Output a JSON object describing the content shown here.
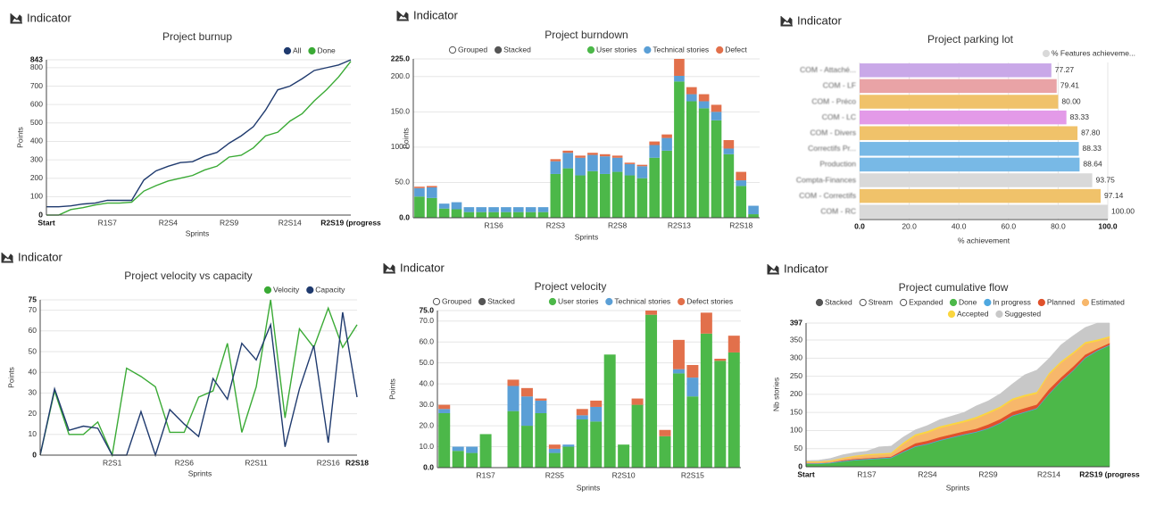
{
  "chart_data": [
    {
      "header": "Indicator",
      "type": "line",
      "title": "Project burnup",
      "x_label": "Sprints",
      "y_label": "Points",
      "categories": [
        "Start",
        null,
        null,
        null,
        null,
        "R1S7",
        null,
        null,
        null,
        null,
        "R2S4",
        null,
        null,
        null,
        null,
        "R2S9",
        null,
        null,
        null,
        null,
        "R2S14",
        null,
        null,
        null,
        null,
        "R2S19 (progress"
      ],
      "series": [
        {
          "name": "All",
          "color": "#1f3a6e",
          "values": [
            45,
            45,
            50,
            60,
            65,
            80,
            80,
            80,
            190,
            240,
            265,
            285,
            290,
            320,
            340,
            390,
            430,
            480,
            570,
            680,
            700,
            740,
            785,
            800,
            815,
            843
          ]
        },
        {
          "name": "Done",
          "color": "#3aaa35",
          "values": [
            0,
            0,
            30,
            40,
            55,
            65,
            65,
            70,
            130,
            160,
            185,
            200,
            215,
            245,
            265,
            315,
            325,
            365,
            430,
            450,
            510,
            550,
            620,
            680,
            750,
            835
          ]
        }
      ],
      "ylim": [
        0,
        843
      ],
      "yticks": [
        0,
        100,
        200,
        300,
        400,
        500,
        600,
        700,
        800,
        843
      ],
      "grid": true,
      "legend": "top-right"
    },
    {
      "header": "Indicator",
      "type": "bar",
      "stacked": true,
      "title": "Project burndown",
      "x_label": "Sprints",
      "y_label": "Points",
      "modes": [
        "Grouped",
        "Stacked"
      ],
      "active_mode": 1,
      "categories": [
        null,
        null,
        null,
        null,
        null,
        null,
        "R1S6",
        null,
        null,
        null,
        null,
        "R2S3",
        null,
        null,
        null,
        null,
        "R2S8",
        null,
        null,
        null,
        null,
        "R2S13",
        null,
        null,
        null,
        null,
        "R2S18",
        null
      ],
      "series": [
        {
          "name": "User stories",
          "color": "#4cb849",
          "values": [
            30,
            28,
            13,
            12,
            8,
            8,
            8,
            8,
            8,
            8,
            8,
            62,
            70,
            60,
            66,
            62,
            65,
            60,
            56,
            85,
            95,
            193,
            165,
            155,
            138,
            90,
            45,
            5
          ]
        },
        {
          "name": "Technical stories",
          "color": "#5b9fd6",
          "values": [
            12,
            15,
            7,
            10,
            7,
            7,
            7,
            7,
            7,
            7,
            7,
            18,
            22,
            25,
            23,
            25,
            20,
            16,
            17,
            18,
            18,
            8,
            10,
            10,
            12,
            8,
            8,
            12
          ]
        },
        {
          "name": "Defect",
          "color": "#e2704b",
          "values": [
            2,
            2,
            0,
            0,
            0,
            0,
            0,
            0,
            0,
            0,
            0,
            3,
            3,
            3,
            3,
            3,
            3,
            2,
            2,
            5,
            5,
            24,
            10,
            10,
            10,
            12,
            12,
            0
          ]
        }
      ],
      "ylim": [
        0,
        225
      ],
      "yticks": [
        {
          "value": 0,
          "label": "0.0"
        },
        {
          "value": 50,
          "label": "50.0"
        },
        {
          "value": 100,
          "label": "100.0"
        },
        {
          "value": 150,
          "label": "150.0"
        },
        {
          "value": 200,
          "label": "200.0"
        },
        {
          "value": 225,
          "label": "225.0"
        }
      ],
      "grid": true,
      "legend": "top-right"
    },
    {
      "header": "Indicator",
      "type": "hbar",
      "title": "Project parking lot",
      "x_label": "% achievement",
      "categories": [
        "COM - Attaché...",
        "COM - LF",
        "COM - Préco",
        "COM - LC",
        "COM - Divers",
        "Correctifs Pr...",
        "Production",
        "Compta-Finances",
        "COM - Correctifs",
        "COM - RC"
      ],
      "series": [
        {
          "name": "% Features achieveme...",
          "color": "#d9d9d9",
          "values": [
            77.27,
            79.41,
            80.0,
            83.33,
            87.8,
            88.33,
            88.64,
            93.75,
            97.14,
            100.0
          ],
          "value_labels": [
            "77.27",
            "79.41",
            "80.00",
            "83.33",
            "87.80",
            "88.33",
            "88.64",
            "93.75",
            "97.14",
            "100.00"
          ],
          "colors": [
            "#c9a8e8",
            "#e9a3a6",
            "#f0c26a",
            "#e39ae8",
            "#f0c26a",
            "#78b9e6",
            "#78b9e6",
            "#d9d9d9",
            "#f0c26a",
            "#d9d9d9"
          ]
        }
      ],
      "xlim": [
        0,
        100
      ],
      "xticks": [
        {
          "value": 0,
          "label": "0.0"
        },
        {
          "value": 20,
          "label": "20.0"
        },
        {
          "value": 40,
          "label": "40.0"
        },
        {
          "value": 60,
          "label": "60.0"
        },
        {
          "value": 80,
          "label": "80.0"
        },
        {
          "value": 100,
          "label": "100.0"
        }
      ],
      "grid": true,
      "legend": "top-right"
    },
    {
      "header": "Indicator",
      "type": "line",
      "title": "Project velocity vs capacity",
      "x_label": "Sprints",
      "y_label": "Points",
      "categories": [
        null,
        null,
        null,
        null,
        null,
        "R2S1",
        null,
        null,
        null,
        null,
        "R2S6",
        null,
        null,
        null,
        null,
        "R2S11",
        null,
        null,
        null,
        null,
        "R2S16",
        null,
        "R2S18"
      ],
      "series": [
        {
          "name": "Velocity",
          "color": "#3aaa35",
          "values": [
            0,
            31,
            10,
            10,
            16,
            0,
            42,
            38,
            33,
            11,
            11,
            28,
            31,
            54,
            11,
            33,
            75,
            18,
            61,
            52,
            71,
            52,
            63
          ]
        },
        {
          "name": "Capacity",
          "color": "#1f3a6e",
          "values": [
            0,
            32,
            12,
            14,
            13,
            0,
            0,
            21,
            0,
            22,
            15,
            9,
            37,
            27,
            54,
            46,
            63,
            4,
            32,
            53,
            6,
            69,
            28
          ]
        }
      ],
      "ylim": [
        0,
        75
      ],
      "yticks": [
        0,
        10,
        20,
        30,
        40,
        50,
        60,
        70,
        75
      ],
      "grid": true,
      "legend": "top-right"
    },
    {
      "header": "Indicator",
      "type": "bar",
      "stacked": true,
      "title": "Project velocity",
      "x_label": "Sprints",
      "y_label": "Points",
      "modes": [
        "Grouped",
        "Stacked"
      ],
      "active_mode": 1,
      "categories": [
        null,
        null,
        null,
        "R1S7",
        null,
        null,
        null,
        null,
        "R2S5",
        null,
        null,
        null,
        null,
        "R2S10",
        null,
        null,
        null,
        null,
        "R2S15",
        null,
        null,
        null
      ],
      "series": [
        {
          "name": "User stories",
          "color": "#4cb849",
          "values": [
            26,
            8,
            7,
            16,
            0,
            27,
            20,
            26,
            7,
            10,
            23,
            22,
            54,
            11,
            30,
            73,
            15,
            45,
            34,
            64,
            51,
            55
          ]
        },
        {
          "name": "Technical stories",
          "color": "#5b9fd6",
          "values": [
            2,
            2,
            3,
            0,
            0,
            12,
            14,
            6,
            2,
            1,
            2,
            7,
            0,
            0,
            0,
            0,
            0,
            2,
            9,
            0,
            0,
            0
          ]
        },
        {
          "name": "Defect stories",
          "color": "#e2704b",
          "values": [
            2,
            0,
            0,
            0,
            0,
            3,
            4,
            1,
            2,
            0,
            3,
            3,
            0,
            0,
            3,
            2,
            3,
            14,
            6,
            10,
            1,
            8
          ]
        }
      ],
      "ylim": [
        0,
        75
      ],
      "yticks": [
        {
          "value": 0,
          "label": "0.0"
        },
        {
          "value": 10,
          "label": "10.0"
        },
        {
          "value": 20,
          "label": "20.0"
        },
        {
          "value": 30,
          "label": "30.0"
        },
        {
          "value": 40,
          "label": "40.0"
        },
        {
          "value": 50,
          "label": "50.0"
        },
        {
          "value": 60,
          "label": "60.0"
        },
        {
          "value": 70,
          "label": "70.0"
        },
        {
          "value": 75,
          "label": "75.0"
        }
      ],
      "grid": true,
      "legend": "top-right"
    },
    {
      "header": "Indicator",
      "type": "area",
      "stacked": true,
      "title": "Project cumulative flow",
      "x_label": "Sprints",
      "y_label": "Nb stories",
      "modes": [
        "Stacked",
        "Stream",
        "Expanded"
      ],
      "active_mode": 0,
      "categories": [
        "Start",
        null,
        null,
        null,
        null,
        "R1S7",
        null,
        null,
        null,
        null,
        "R2S4",
        null,
        null,
        null,
        null,
        "R2S9",
        null,
        null,
        null,
        null,
        "R2S14",
        null,
        null,
        null,
        null,
        "R2S19 (progress"
      ],
      "series": [
        {
          "name": "Done",
          "color": "#4cb849",
          "values": [
            8,
            8,
            10,
            14,
            18,
            20,
            22,
            24,
            40,
            55,
            62,
            72,
            80,
            88,
            95,
            105,
            120,
            140,
            150,
            160,
            200,
            235,
            265,
            300,
            320,
            335
          ]
        },
        {
          "name": "In progress",
          "color": "#4fa8e0",
          "values": [
            2,
            2,
            2,
            2,
            2,
            2,
            2,
            2,
            2,
            2,
            2,
            2,
            2,
            2,
            2,
            2,
            2,
            2,
            2,
            2,
            2,
            2,
            2,
            2,
            2,
            2
          ]
        },
        {
          "name": "Planned",
          "color": "#e0512b",
          "values": [
            0,
            0,
            0,
            2,
            2,
            2,
            2,
            2,
            5,
            8,
            8,
            8,
            8,
            8,
            8,
            10,
            10,
            10,
            10,
            10,
            12,
            10,
            10,
            8,
            5,
            5
          ]
        },
        {
          "name": "Estimated",
          "color": "#f7b76b",
          "values": [
            3,
            3,
            4,
            5,
            6,
            8,
            8,
            8,
            15,
            20,
            22,
            25,
            25,
            25,
            28,
            30,
            30,
            32,
            32,
            30,
            40,
            40,
            35,
            30,
            20,
            15
          ]
        },
        {
          "name": "Accepted",
          "color": "#fbd63f",
          "values": [
            2,
            2,
            2,
            2,
            3,
            3,
            3,
            3,
            5,
            5,
            5,
            5,
            5,
            5,
            5,
            5,
            5,
            5,
            5,
            5,
            5,
            5,
            5,
            5,
            5,
            4
          ]
        },
        {
          "name": "Suggested",
          "color": "#c8c8c8",
          "values": [
            2,
            3,
            5,
            8,
            8,
            8,
            18,
            18,
            15,
            12,
            15,
            18,
            20,
            22,
            30,
            30,
            35,
            40,
            55,
            60,
            40,
            45,
            45,
            40,
            45,
            36
          ]
        }
      ],
      "ylim": [
        0,
        397
      ],
      "yticks": [
        0,
        50,
        100,
        150,
        200,
        250,
        300,
        350,
        397
      ],
      "grid": true,
      "legend": "top-right"
    }
  ]
}
